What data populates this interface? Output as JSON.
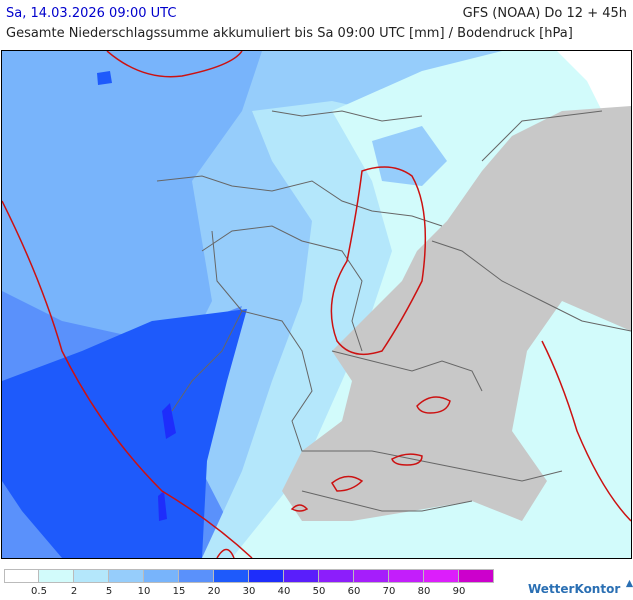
{
  "header": {
    "date_label": "Sa, 14.03.2026 09:00 UTC",
    "model_label": "GFS (NOAA) Do 12 + 45h",
    "subtitle": "Gesamte Niederschlagssumme akkumuliert bis Sa 09:00 UTC [mm] / Bodendruck [hPa]"
  },
  "legend": {
    "labels": [
      "0.5",
      "2",
      "5",
      "10",
      "15",
      "20",
      "30",
      "40",
      "50",
      "60",
      "70",
      "80",
      "90"
    ],
    "colors": [
      "#ffffff",
      "#d2fbfb",
      "#b4e7fb",
      "#96cdfb",
      "#78b4fb",
      "#5a91fb",
      "#1e5afb",
      "#1e2dfb",
      "#5a1efb",
      "#8c1efb",
      "#a51efb",
      "#c31efb",
      "#dc1efb",
      "#cc00cc"
    ]
  },
  "brand": {
    "name": "WetterKontor",
    "icon": "wetterkontor-logo-icon"
  },
  "map": {
    "no_data_color": "#c8c8c8",
    "isobar_color": "#cc1111",
    "border_color": "#666666"
  }
}
